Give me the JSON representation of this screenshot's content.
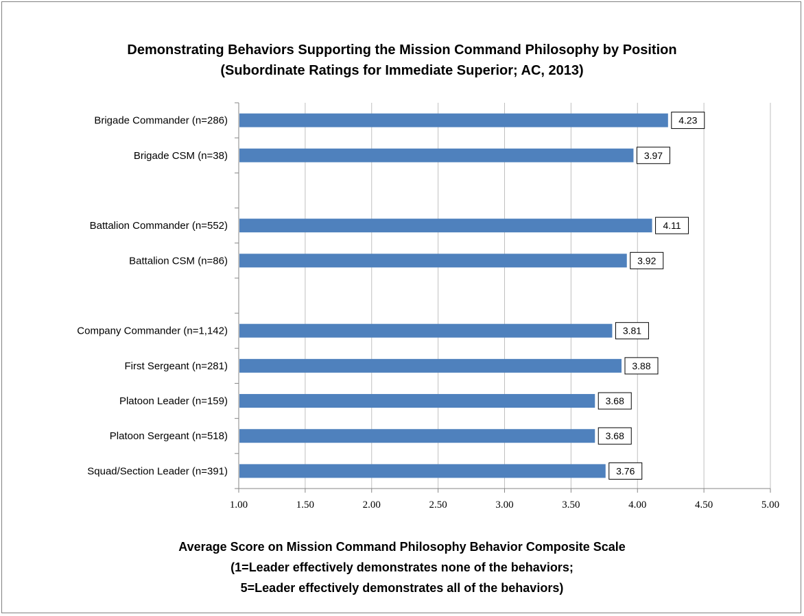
{
  "chart_data": {
    "type": "bar",
    "orientation": "horizontal",
    "title": [
      "Demonstrating Behaviors Supporting the Mission Command Philosophy by Position",
      "(Subordinate Ratings for Immediate Superior; AC, 2013)"
    ],
    "xlabel": [
      "Average Score on Mission Command Philosophy  Behavior Composite Scale",
      "(1=Leader effectively demonstrates none of the behaviors;",
      "5=Leader effectively demonstrates all of the behaviors)"
    ],
    "ylabel": "",
    "categories": [
      "Brigade Commander (n=286)",
      "Brigade CSM (n=38)",
      "",
      "Battalion Commander (n=552)",
      "Battalion CSM (n=86)",
      "",
      "Company Commander (n=1,142)",
      "First Sergeant (n=281)",
      "Platoon Leader (n=159)",
      "Platoon Sergeant (n=518)",
      "Squad/Section Leader (n=391)"
    ],
    "values": [
      4.23,
      3.97,
      null,
      4.11,
      3.92,
      null,
      3.81,
      3.88,
      3.68,
      3.68,
      3.76
    ],
    "data_labels": [
      "4.23",
      "3.97",
      "",
      "4.11",
      "3.92",
      "",
      "3.81",
      "3.88",
      "3.68",
      "3.68",
      "3.76"
    ],
    "xlim": [
      1.0,
      5.0
    ],
    "xticks": [
      "1.00",
      "1.50",
      "2.00",
      "2.50",
      "3.00",
      "3.50",
      "4.00",
      "4.50",
      "5.00"
    ],
    "grid": "vertical",
    "legend": "none",
    "bar_color": "#4f81bd",
    "gridline_color": "#bfbfbf",
    "axis_color": "#868686"
  }
}
